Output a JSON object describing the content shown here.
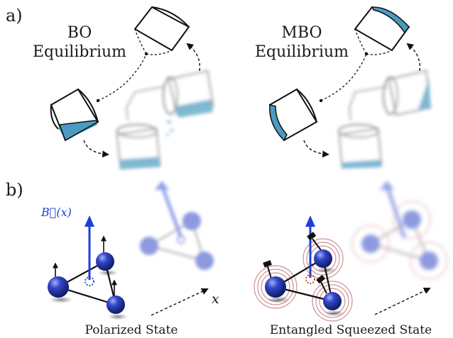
{
  "panels": {
    "a_label": "a)",
    "b_label": "b)"
  },
  "titles": {
    "bo_line1": "BO",
    "bo_line2": "Equilibrium",
    "mbo_line1": "MBO",
    "mbo_line2": "Equilibrium"
  },
  "captions": {
    "polarized": "Polarized State",
    "entangled": "Entangled Squeezed State"
  },
  "axis": {
    "field_label": "B⃗(x)",
    "x_label": "x"
  },
  "colors": {
    "liquid": "#4a9bc1",
    "atom": "#1a2a8c",
    "field_arrow": "#1f3fd6",
    "squeeze_ring": "#c8868a"
  },
  "icons": [
    "bucket-icon",
    "atom-icon",
    "spin-arrow-icon",
    "field-arrow-icon"
  ]
}
